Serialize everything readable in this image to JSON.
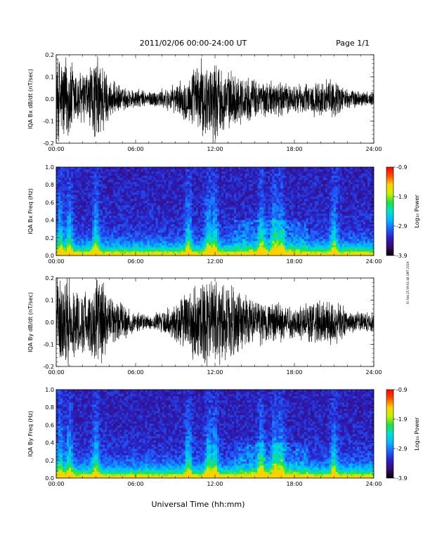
{
  "header": {
    "title": "2011/02/06  00:00-24:00 UT",
    "page": "Page 1/1"
  },
  "footer": {
    "xlabel": "Universal Time (hh:mm)"
  },
  "side_stamp": "Fri Feb 25 09:01:48 GMT 2019",
  "colors": {
    "trace": "#000000",
    "colormap": [
      "#000000",
      "#3a0a6e",
      "#2a1fc0",
      "#1f5fff",
      "#00b8ff",
      "#00e0d0",
      "#20e040",
      "#c8f000",
      "#ffd000",
      "#ff5000",
      "#ff0000"
    ]
  },
  "chart_data": [
    {
      "type": "line",
      "name": "bx-timeseries",
      "ylabel": "IQA Bx dB/dt (nT/sec)",
      "xlim": [
        0,
        24
      ],
      "ylim": [
        -0.2,
        0.2
      ],
      "x_ticks": [
        "00:00",
        "06:00",
        "12:00",
        "18:00",
        "24:00"
      ],
      "y_ticks": [
        "-0.2",
        "-0.1",
        "0.0",
        "0.1",
        "0.2"
      ],
      "envelope": {
        "x_hours": [
          0,
          0.5,
          1,
          1.5,
          2,
          2.5,
          3,
          3.5,
          4,
          5,
          6,
          7,
          8,
          9,
          10,
          10.5,
          11,
          11.5,
          12,
          12.5,
          13,
          14,
          15,
          16,
          17,
          18,
          19,
          20,
          21,
          22,
          23,
          24
        ],
        "amplitude": [
          0.22,
          0.22,
          0.22,
          0.15,
          0.14,
          0.15,
          0.22,
          0.2,
          0.1,
          0.06,
          0.05,
          0.04,
          0.05,
          0.07,
          0.12,
          0.16,
          0.2,
          0.18,
          0.22,
          0.16,
          0.14,
          0.12,
          0.1,
          0.09,
          0.09,
          0.07,
          0.08,
          0.09,
          0.1,
          0.05,
          0.04,
          0.04
        ]
      }
    },
    {
      "type": "heatmap",
      "name": "bx-spectrogram",
      "ylabel": "IQA Bx Freq (Hz)",
      "xlim": [
        0,
        24
      ],
      "ylim": [
        0,
        1.0
      ],
      "x_ticks": [
        "00:00",
        "06:00",
        "12:00",
        "18:00",
        "24:00"
      ],
      "y_ticks": [
        "0.0",
        "0.2",
        "0.4",
        "0.6",
        "0.8",
        "1.0"
      ],
      "colorbar": {
        "label": "Log₁₀ Power",
        "range": [
          -3.9,
          -0.9
        ],
        "ticks": [
          "-0.9",
          "-1.9",
          "-2.9",
          "-3.9"
        ]
      },
      "activity_hours": [
        0.3,
        1,
        3,
        10,
        11.5,
        12,
        15.5,
        16.5,
        17,
        21
      ]
    },
    {
      "type": "line",
      "name": "by-timeseries",
      "ylabel": "IQA By dB/dt (nT/sec)",
      "xlim": [
        0,
        24
      ],
      "ylim": [
        -0.2,
        0.2
      ],
      "x_ticks": [
        "00:00",
        "06:00",
        "12:00",
        "18:00",
        "24:00"
      ],
      "y_ticks": [
        "-0.2",
        "-0.1",
        "0.0",
        "0.1",
        "0.2"
      ],
      "envelope": {
        "x_hours": [
          0,
          0.5,
          1,
          1.5,
          2,
          2.5,
          3,
          3.5,
          4,
          5,
          6,
          7,
          8,
          9,
          10,
          10.5,
          11,
          11.5,
          12,
          12.5,
          13,
          14,
          15,
          16,
          17,
          18,
          19,
          20,
          21,
          22,
          23,
          24
        ],
        "amplitude": [
          0.22,
          0.22,
          0.22,
          0.18,
          0.16,
          0.16,
          0.22,
          0.22,
          0.12,
          0.1,
          0.05,
          0.04,
          0.06,
          0.1,
          0.16,
          0.2,
          0.22,
          0.22,
          0.22,
          0.2,
          0.18,
          0.16,
          0.12,
          0.1,
          0.1,
          0.08,
          0.1,
          0.12,
          0.12,
          0.06,
          0.05,
          0.05
        ]
      }
    },
    {
      "type": "heatmap",
      "name": "by-spectrogram",
      "ylabel": "IQA By Freq (Hz)",
      "xlim": [
        0,
        24
      ],
      "ylim": [
        0,
        1.0
      ],
      "x_ticks": [
        "00:00",
        "06:00",
        "12:00",
        "18:00",
        "24:00"
      ],
      "y_ticks": [
        "0.0",
        "0.2",
        "0.4",
        "0.6",
        "0.8",
        "1.0"
      ],
      "colorbar": {
        "label": "Log₁₀ Power",
        "range": [
          -3.9,
          -0.9
        ],
        "ticks": [
          "-0.9",
          "-1.9",
          "-2.9",
          "-3.9"
        ]
      },
      "activity_hours": [
        0.3,
        1,
        3,
        10,
        11.5,
        12,
        15.5,
        16.5,
        17,
        21
      ]
    }
  ]
}
